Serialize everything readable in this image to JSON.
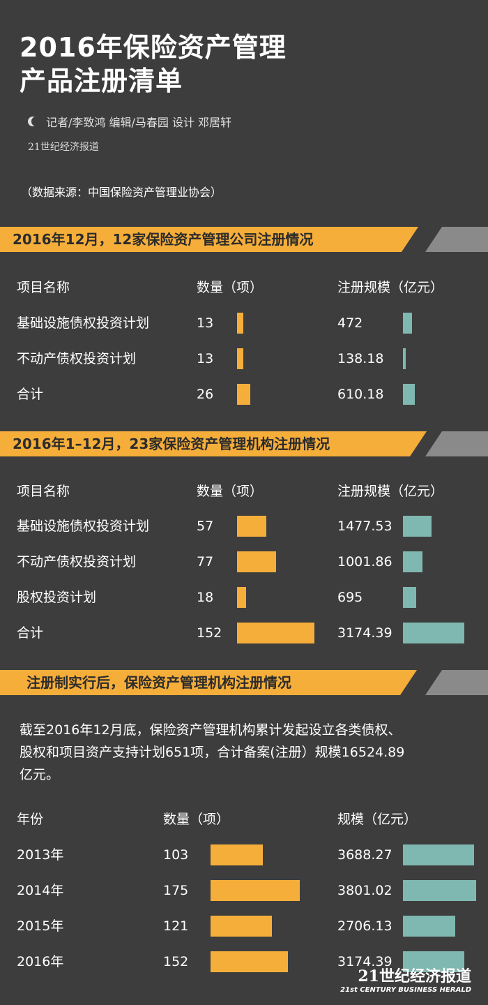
{
  "header": {
    "title_line1": "2016年保险资产管理",
    "title_line2": "产品注册清单",
    "credit": "记者/李致鸿 编辑/马春园 设计 邓居轩",
    "brand_small": "21世纪经济报道",
    "source": "（数据来源：中国保险资产管理业协会）"
  },
  "section1": {
    "banner": "2016年12月，12家保险资产管理公司注册情况",
    "headers": {
      "name": "项目名称",
      "count": "数量（项）",
      "scale": "注册规模（亿元）"
    },
    "rows": [
      {
        "name": "基础设施债权投资计划",
        "count": "13",
        "scale": "472",
        "count_val": 13,
        "scale_val": 472
      },
      {
        "name": "不动产债权投资计划",
        "count": "13",
        "scale": "138.18",
        "count_val": 13,
        "scale_val": 138.18
      },
      {
        "name": "合计",
        "count": "26",
        "scale": "610.18",
        "count_val": 26,
        "scale_val": 610.18
      }
    ]
  },
  "section2": {
    "banner": "2016年1–12月，23家保险资产管理机构注册情况",
    "headers": {
      "name": "项目名称",
      "count": "数量（项）",
      "scale": "注册规模（亿元）"
    },
    "rows": [
      {
        "name": "基础设施债权投资计划",
        "count": "57",
        "scale": "1477.53",
        "count_val": 57,
        "scale_val": 1477.53
      },
      {
        "name": "不动产债权投资计划",
        "count": "77",
        "scale": "1001.86",
        "count_val": 77,
        "scale_val": 1001.86
      },
      {
        "name": "股权投资计划",
        "count": "18",
        "scale": "695",
        "count_val": 18,
        "scale_val": 695
      },
      {
        "name": "合计",
        "count": "152",
        "scale": "3174.39",
        "count_val": 152,
        "scale_val": 3174.39
      }
    ]
  },
  "section3": {
    "banner": "注册制实行后，保险资产管理机构注册情况",
    "paragraph_line1": "截至2016年12月底，保险资产管理机构累计发起设立各类债权、",
    "paragraph_line2": "股权和项目资产支持计划651项，合计备案(注册）规模16524.89",
    "paragraph_line3": "亿元。",
    "headers": {
      "name": "年份",
      "count": "数量（项）",
      "scale": "规模（亿元）"
    },
    "rows": [
      {
        "name": "2013年",
        "count": "103",
        "scale": "3688.27",
        "count_val": 103,
        "scale_val": 3688.27
      },
      {
        "name": "2014年",
        "count": "175",
        "scale": "3801.02",
        "count_val": 175,
        "scale_val": 3801.02
      },
      {
        "name": "2015年",
        "count": "121",
        "scale": "2706.13",
        "count_val": 121,
        "scale_val": 2706.13
      },
      {
        "name": "2016年",
        "count": "152",
        "scale": "3174.39",
        "count_val": 152,
        "scale_val": 3174.39
      }
    ]
  },
  "footer": {
    "brand_cn": "21世纪经济报道",
    "brand_en": "21st CENTURY BUSINESS HERALD"
  },
  "colors": {
    "background": "#3d3d3d",
    "accent_orange": "#f5ae3a",
    "accent_teal": "#7fb8b0",
    "banner_gray": "#8a8a8a"
  }
}
